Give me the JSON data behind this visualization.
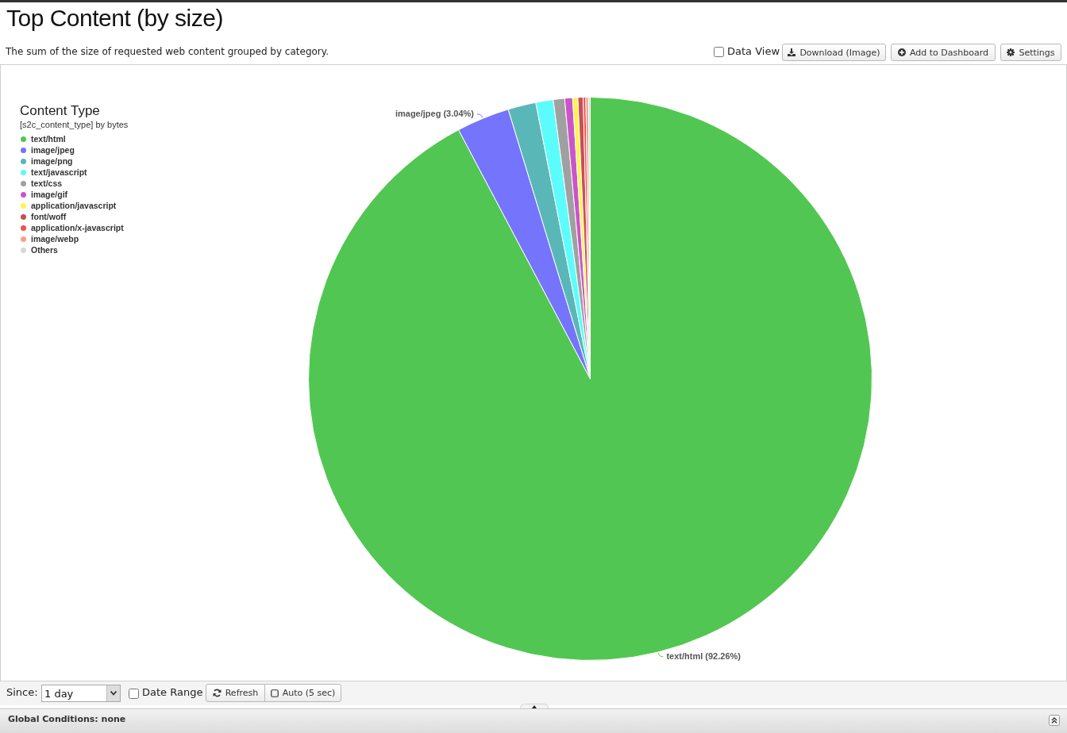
{
  "chart_data": {
    "type": "pie",
    "title": "Top Content (by size)",
    "subtitle": "The sum of the size of requested web content grouped by category.",
    "legend_title": "Content Type",
    "legend": "top left",
    "categories": [
      "text/html",
      "image/jpeg",
      "image/png",
      "text/javascript",
      "text/css",
      "image/gif",
      "application/javascript",
      "font/woff",
      "application/x-javascript",
      "image/webp",
      "Others"
    ],
    "values": [
      92.26,
      3.04,
      1.6,
      1.0,
      0.65,
      0.45,
      0.3,
      0.3,
      0.15,
      0.15,
      0.1
    ],
    "colors": [
      "#52c652",
      "#7474fc",
      "#5ab7b7",
      "#5cfcfc",
      "#a0a0a0",
      "#c955c9",
      "#fcf452",
      "#c85050",
      "#f05050",
      "#f5a08c",
      "#d6d6d6"
    ],
    "value_labels": [
      "text/html (92.26%)",
      "image/jpeg (3.04%)",
      null,
      null,
      null,
      null,
      null,
      null,
      null,
      null,
      null
    ],
    "annotations": [
      "[s2c_content_type] by bytes",
      "Data View",
      "Download (Image)",
      "Add to Dashboard",
      "Settings",
      "Since:",
      "1 day",
      "Date Range",
      "Refresh",
      "Auto (5 sec)",
      "Global Conditions: none"
    ]
  }
}
